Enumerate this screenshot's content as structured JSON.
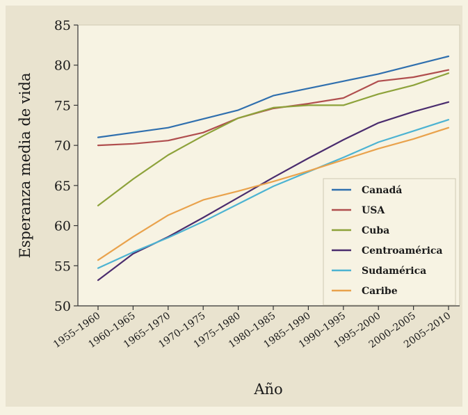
{
  "chart_data": {
    "type": "line",
    "title": "",
    "xlabel": "Año",
    "ylabel": "Esperanza media de vida",
    "categories": [
      "1955–1960",
      "1960–1965",
      "1965–1970",
      "1970–1975",
      "1975–1980",
      "1980–1985",
      "1985–1990",
      "1990–1995",
      "1995–2000",
      "2000–2005",
      "2005–2010"
    ],
    "ylim": [
      50,
      85
    ],
    "yticks": [
      50,
      55,
      60,
      65,
      70,
      75,
      80,
      85
    ],
    "grid": false,
    "legend_position": "bottom-right",
    "series": [
      {
        "name": "Canadá",
        "color": "#2f6fae",
        "values": [
          71.0,
          71.6,
          72.2,
          73.3,
          74.4,
          76.2,
          77.1,
          78.0,
          78.9,
          80.0,
          81.1
        ]
      },
      {
        "name": "USA",
        "color": "#b04e4e",
        "values": [
          70.0,
          70.2,
          70.6,
          71.6,
          73.4,
          74.6,
          75.2,
          75.9,
          78.0,
          78.5,
          79.4
        ]
      },
      {
        "name": "Cuba",
        "color": "#8da23a",
        "values": [
          62.5,
          65.8,
          68.8,
          71.2,
          73.4,
          74.7,
          75.0,
          75.0,
          76.4,
          77.5,
          79.0
        ]
      },
      {
        "name": "Centroamérica",
        "color": "#4a2c6e",
        "values": [
          53.2,
          56.5,
          58.6,
          61.0,
          63.5,
          66.0,
          68.4,
          70.7,
          72.8,
          74.2,
          75.4
        ]
      },
      {
        "name": "Sudamérica",
        "color": "#4cb3d2",
        "values": [
          54.7,
          56.7,
          58.5,
          60.5,
          62.7,
          64.9,
          66.7,
          68.5,
          70.4,
          71.8,
          73.2
        ]
      },
      {
        "name": "Caribe",
        "color": "#e9a24c",
        "values": [
          55.7,
          58.6,
          61.3,
          63.2,
          64.3,
          65.5,
          66.8,
          68.2,
          69.6,
          70.8,
          72.2
        ]
      }
    ]
  }
}
